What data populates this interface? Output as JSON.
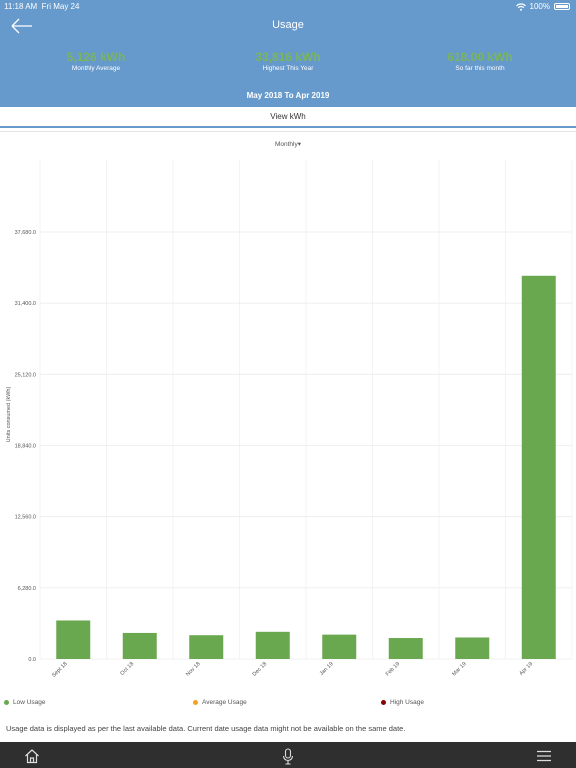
{
  "status_bar": {
    "time": "11:18 AM",
    "date": "Fri May 24",
    "battery": "100%",
    "wifi_icon": "wifi-icon",
    "battery_icon": "battery-icon"
  },
  "header": {
    "title": "Usage",
    "back_icon": "back-arrow-icon",
    "period": "May 2018 To Apr 2019"
  },
  "stats": [
    {
      "value": "5,126 kWh",
      "label": "Monthly Average"
    },
    {
      "value": "33,816 kWh",
      "label": "Highest This Year"
    },
    {
      "value": "618.00 kWh",
      "label": "So far this month"
    }
  ],
  "view_toggle": {
    "label": "View kWh"
  },
  "filter": {
    "selected": "Monthly",
    "chevron_icon": "triangle-down-icon"
  },
  "colors": {
    "header": "#6699cc",
    "low": "#6aa84f",
    "average": "#f4a11d",
    "high": "#8b0000",
    "tabbar": "#2f2f2f"
  },
  "chart_data": {
    "type": "bar",
    "ylabel": "Units consumed (kWh)",
    "categories": [
      "Sept 18",
      "Oct 18",
      "Nov 18",
      "Dec 18",
      "Jan 19",
      "Feb 19",
      "Mar 19",
      "Apr 19"
    ],
    "values": [
      3400,
      2300,
      2100,
      2400,
      2150,
      1850,
      1900,
      33816
    ],
    "yticks": [
      "0.0",
      "6,280.0",
      "12,560.0",
      "18,840.0",
      "25,120.0",
      "31,400.0",
      "37,680.0"
    ],
    "ylim": [
      0,
      37680
    ],
    "grid": true,
    "legend_position": "bottom"
  },
  "legend": [
    {
      "label": "Low Usage",
      "color": "#6aa84f"
    },
    {
      "label": "Average Usage",
      "color": "#f4a11d"
    },
    {
      "label": "High Usage",
      "color": "#8b0000"
    }
  ],
  "note": "Usage data is displayed as per the last available data. Current date usage data might not be available on the same date.",
  "tabbar": {
    "home_icon": "home-icon",
    "mic_icon": "microphone-icon",
    "menu_icon": "hamburger-menu-icon"
  }
}
